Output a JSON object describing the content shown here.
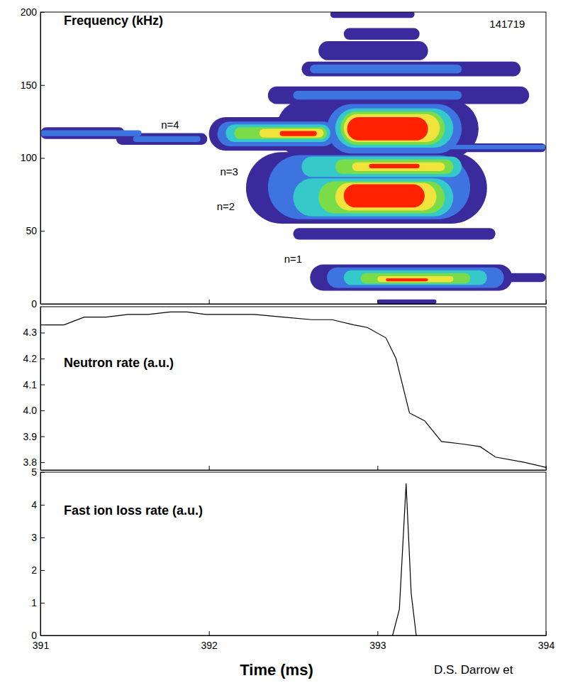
{
  "chart_data": [
    {
      "type": "spectrogram",
      "title": "Frequency (kHz)",
      "xlim": [
        391,
        394
      ],
      "xticks": [
        391,
        392,
        393,
        394
      ],
      "ylim": [
        0,
        200
      ],
      "yticks": [
        0,
        50,
        100,
        150,
        200
      ],
      "tick_labels": "y",
      "colors": [
        "#3a2a9c",
        "#3d74e0",
        "#35c9c9",
        "#7bdc4a",
        "#f0e43c",
        "#ff2200"
      ],
      "regions": [
        {
          "t": [
            391.0,
            391.5
          ],
          "f": [
            113,
            121
          ],
          "level": 1
        },
        {
          "t": [
            391.45,
            391.99
          ],
          "f": [
            109,
            117
          ],
          "level": 1
        },
        {
          "t": [
            392.0,
            392.78
          ],
          "f": [
            105,
            128
          ],
          "level": 1
        },
        {
          "t": [
            392.72,
            393.22
          ],
          "f": [
            196,
            201
          ],
          "level": 1
        },
        {
          "t": [
            392.8,
            393.25
          ],
          "f": [
            181,
            189
          ],
          "level": 1
        },
        {
          "t": [
            392.65,
            393.3
          ],
          "f": [
            167,
            180
          ],
          "level": 1
        },
        {
          "t": [
            392.55,
            393.85
          ],
          "f": [
            156,
            166
          ],
          "level": 1
        },
        {
          "t": [
            392.35,
            393.9
          ],
          "f": [
            137,
            149
          ],
          "level": 1
        },
        {
          "t": [
            392.4,
            393.6
          ],
          "f": [
            100,
            140
          ],
          "level": 1
        },
        {
          "t": [
            392.75,
            394.0
          ],
          "f": [
            104,
            110
          ],
          "level": 1
        },
        {
          "t": [
            392.22,
            393.65
          ],
          "f": [
            55,
            104
          ],
          "level": 1
        },
        {
          "t": [
            392.5,
            393.7
          ],
          "f": [
            44,
            52
          ],
          "level": 1
        },
        {
          "t": [
            392.6,
            393.8
          ],
          "f": [
            9,
            27
          ],
          "level": 1
        },
        {
          "t": [
            393.5,
            394.0
          ],
          "f": [
            15,
            21
          ],
          "level": 1
        },
        {
          "t": [
            393.0,
            393.35
          ],
          "f": [
            0,
            3
          ],
          "level": 1
        },
        {
          "t": [
            391.0,
            391.6
          ],
          "f": [
            115,
            119
          ],
          "level": 2
        },
        {
          "t": [
            391.55,
            391.95
          ],
          "f": [
            111,
            115
          ],
          "level": 2
        },
        {
          "t": [
            392.05,
            392.75
          ],
          "f": [
            108,
            125
          ],
          "level": 2
        },
        {
          "t": [
            392.6,
            393.5
          ],
          "f": [
            158,
            164
          ],
          "level": 2
        },
        {
          "t": [
            392.5,
            393.5
          ],
          "f": [
            140,
            146
          ],
          "level": 2
        },
        {
          "t": [
            392.7,
            393.5
          ],
          "f": [
            103,
            137
          ],
          "level": 2
        },
        {
          "t": [
            393.3,
            394.0
          ],
          "f": [
            106,
            109
          ],
          "level": 2
        },
        {
          "t": [
            392.35,
            393.55
          ],
          "f": [
            58,
            102
          ],
          "level": 2
        },
        {
          "t": [
            392.7,
            393.75
          ],
          "f": [
            11,
            25
          ],
          "level": 2
        },
        {
          "t": [
            392.1,
            392.72
          ],
          "f": [
            111,
            123
          ],
          "level": 3
        },
        {
          "t": [
            392.75,
            393.45
          ],
          "f": [
            107,
            134
          ],
          "level": 3
        },
        {
          "t": [
            392.55,
            393.5
          ],
          "f": [
            87,
            101
          ],
          "level": 3
        },
        {
          "t": [
            392.5,
            393.45
          ],
          "f": [
            60,
            86
          ],
          "level": 3
        },
        {
          "t": [
            392.8,
            393.65
          ],
          "f": [
            13,
            23
          ],
          "level": 3
        },
        {
          "t": [
            392.15,
            392.7
          ],
          "f": [
            113,
            121
          ],
          "level": 4
        },
        {
          "t": [
            392.78,
            393.4
          ],
          "f": [
            109,
            132
          ],
          "level": 4
        },
        {
          "t": [
            392.75,
            393.45
          ],
          "f": [
            89,
            99
          ],
          "level": 4
        },
        {
          "t": [
            392.65,
            393.4
          ],
          "f": [
            62,
            84
          ],
          "level": 4
        },
        {
          "t": [
            392.9,
            393.55
          ],
          "f": [
            14,
            21
          ],
          "level": 4
        },
        {
          "t": [
            392.3,
            392.68
          ],
          "f": [
            114,
            120
          ],
          "level": 5
        },
        {
          "t": [
            392.8,
            393.37
          ],
          "f": [
            111,
            130
          ],
          "level": 5
        },
        {
          "t": [
            392.85,
            393.4
          ],
          "f": [
            91,
            97
          ],
          "level": 5
        },
        {
          "t": [
            392.75,
            393.35
          ],
          "f": [
            64,
            83
          ],
          "level": 5
        },
        {
          "t": [
            393.0,
            393.45
          ],
          "f": [
            15,
            19
          ],
          "level": 5
        },
        {
          "t": [
            392.42,
            392.64
          ],
          "f": [
            115,
            118.5
          ],
          "level": 6
        },
        {
          "t": [
            392.82,
            393.3
          ],
          "f": [
            112,
            128
          ],
          "level": 6
        },
        {
          "t": [
            392.95,
            393.25
          ],
          "f": [
            93,
            96
          ],
          "level": 6
        },
        {
          "t": [
            392.8,
            393.28
          ],
          "f": [
            66,
            82
          ],
          "level": 6
        },
        {
          "t": [
            393.05,
            393.3
          ],
          "f": [
            15.5,
            17.5
          ],
          "level": 6
        }
      ],
      "annotations": [
        {
          "text": "141719",
          "x": 393.77,
          "y": 191
        },
        {
          "text": "n=4",
          "x": 391.77,
          "y": 122
        },
        {
          "text": "n=3",
          "x": 392.12,
          "y": 90
        },
        {
          "text": "n=2",
          "x": 392.1,
          "y": 66
        },
        {
          "text": "n=1",
          "x": 392.5,
          "y": 30
        }
      ]
    },
    {
      "type": "line",
      "title": "Neutron rate (a.u.)",
      "x": [
        391.0,
        391.14,
        391.26,
        391.39,
        391.52,
        391.64,
        391.77,
        391.87,
        391.98,
        392.1,
        392.27,
        392.44,
        392.61,
        392.73,
        392.86,
        392.94,
        393.05,
        393.11,
        393.19,
        393.28,
        393.38,
        393.51,
        393.61,
        393.7,
        393.87,
        394.0
      ],
      "values": [
        4.33,
        4.33,
        4.36,
        4.36,
        4.37,
        4.37,
        4.38,
        4.38,
        4.37,
        4.37,
        4.37,
        4.36,
        4.35,
        4.35,
        4.33,
        4.32,
        4.28,
        4.2,
        3.99,
        3.96,
        3.88,
        3.87,
        3.86,
        3.82,
        3.8,
        3.78
      ],
      "color": "#000000",
      "xlim": [
        391,
        394
      ],
      "xticks": [
        391,
        392,
        393,
        394
      ],
      "ylim": [
        3.77,
        4.4
      ],
      "yticks": [
        3.8,
        3.9,
        {
          "value": 4,
          "label": "4.0"
        },
        4.1,
        4.2,
        4.3
      ],
      "tick_labels": "y"
    },
    {
      "type": "line",
      "title": "Fast ion loss rate (a.u.)",
      "xlabel": "Time (ms)",
      "x": [
        393.09,
        393.13,
        393.17,
        393.2,
        393.23
      ],
      "values": [
        0,
        0.8,
        4.65,
        1.3,
        0
      ],
      "color": "#000000",
      "xlim": [
        391,
        394
      ],
      "xticks": [
        391,
        392,
        393,
        394
      ],
      "ylim": [
        0,
        5
      ],
      "yticks": [
        0,
        1,
        2,
        3,
        4,
        5
      ]
    }
  ],
  "source": "D.S. Darrow et"
}
